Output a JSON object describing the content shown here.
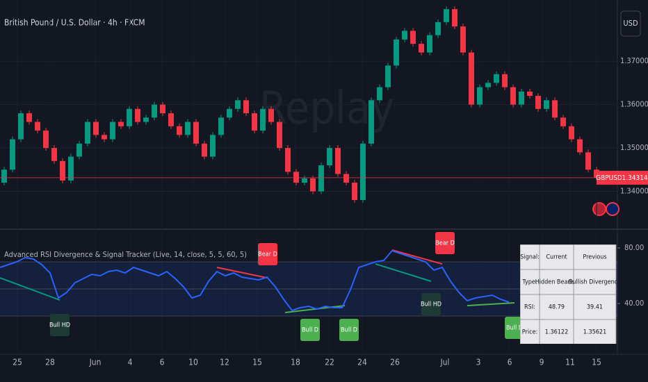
{
  "header": {
    "symbol_title": "British Pound / U.S. Dollar · 4h · FXCM",
    "currency_button": "USD",
    "watermark": "Replay"
  },
  "chart_data": [
    {
      "type": "candlestick",
      "name": "GBPUSD",
      "price_label": "1.34314",
      "last_price": 1.34314,
      "up_color": "#089981",
      "down_color": "#f23645",
      "open": [
        1.342,
        1.345,
        1.352,
        1.358,
        1.356,
        1.354,
        1.35,
        1.347,
        1.3425,
        1.348,
        1.351,
        1.356,
        1.353,
        1.352,
        1.356,
        1.355,
        1.359,
        1.356,
        1.357,
        1.36,
        1.358,
        1.355,
        1.353,
        1.356,
        1.351,
        1.348,
        1.353,
        1.357,
        1.359,
        1.361,
        1.358,
        1.354,
        1.359,
        1.356,
        1.35,
        1.3445,
        1.342,
        1.343,
        1.34,
        1.346,
        1.35,
        1.344,
        1.342,
        1.338,
        1.351,
        1.361,
        1.364,
        1.369,
        1.375,
        1.377,
        1.374,
        1.372,
        1.376,
        1.379,
        1.382,
        1.378,
        1.372,
        1.36,
        1.364,
        1.365,
        1.367,
        1.364,
        1.36,
        1.363,
        1.362,
        1.359,
        1.361,
        1.357,
        1.355,
        1.352,
        1.349,
        1.345
      ],
      "close": [
        1.345,
        1.352,
        1.358,
        1.356,
        1.354,
        1.35,
        1.347,
        1.3425,
        1.348,
        1.351,
        1.356,
        1.353,
        1.352,
        1.356,
        1.355,
        1.359,
        1.356,
        1.357,
        1.36,
        1.358,
        1.355,
        1.353,
        1.356,
        1.351,
        1.348,
        1.353,
        1.357,
        1.359,
        1.361,
        1.358,
        1.354,
        1.359,
        1.356,
        1.35,
        1.3445,
        1.342,
        1.343,
        1.34,
        1.346,
        1.35,
        1.344,
        1.342,
        1.338,
        1.351,
        1.361,
        1.364,
        1.369,
        1.375,
        1.377,
        1.374,
        1.372,
        1.376,
        1.379,
        1.382,
        1.378,
        1.372,
        1.36,
        1.364,
        1.365,
        1.367,
        1.364,
        1.36,
        1.363,
        1.362,
        1.359,
        1.361,
        1.357,
        1.355,
        1.352,
        1.349,
        1.345,
        1.3431
      ],
      "ylim": [
        1.3316,
        1.3841
      ],
      "yticks": [
        {
          "value": 1.37,
          "label": "1.37000"
        },
        {
          "value": 1.36,
          "label": "1.36000"
        },
        {
          "value": 1.35,
          "label": "1.35000"
        },
        {
          "value": 1.34,
          "label": "1.34000"
        }
      ],
      "x_labels": [
        "25",
        "28",
        "Jun",
        "4",
        "6",
        "10",
        "12",
        "15",
        "18",
        "22",
        "24",
        "26",
        "Jul",
        "3",
        "6",
        "9",
        "11",
        "15"
      ]
    },
    {
      "type": "line",
      "title": "Advanced RSI Divergence & Signal Tracker (Live, 14, close, 5, 5, 60, 5)",
      "color": "#2962ff",
      "values": [
        66,
        68,
        70,
        73,
        72,
        68,
        62,
        44,
        48,
        55,
        58,
        61,
        60,
        63,
        64,
        62,
        66,
        64,
        62,
        60,
        63,
        58,
        52,
        44,
        46,
        56,
        63,
        60,
        62,
        59,
        58,
        57,
        59,
        52,
        43,
        35,
        37,
        38,
        36,
        38,
        37,
        37,
        50,
        66,
        68,
        70,
        71,
        78,
        76,
        74,
        72,
        70,
        64,
        66,
        56,
        48,
        42,
        44,
        45,
        46,
        43,
        41
      ],
      "ylim": [
        3.5,
        93.5
      ],
      "yticks": [
        {
          "value": 80,
          "label": "80.00"
        },
        {
          "value": 40,
          "label": "40.00"
        }
      ],
      "signals": [
        "Bull HD",
        "Bear D",
        "Bull D",
        "Bull D",
        "Bear D",
        "Bull HD",
        "Bull D"
      ],
      "table": [
        [
          "Signal:",
          "Current",
          "Previous"
        ],
        [
          "Type:",
          "Hidden Bearish",
          "Bullish Divergence"
        ],
        [
          "RSI:",
          "48.79",
          "39.41"
        ],
        [
          "Price:",
          "1.36122",
          "1.35621"
        ]
      ]
    }
  ]
}
